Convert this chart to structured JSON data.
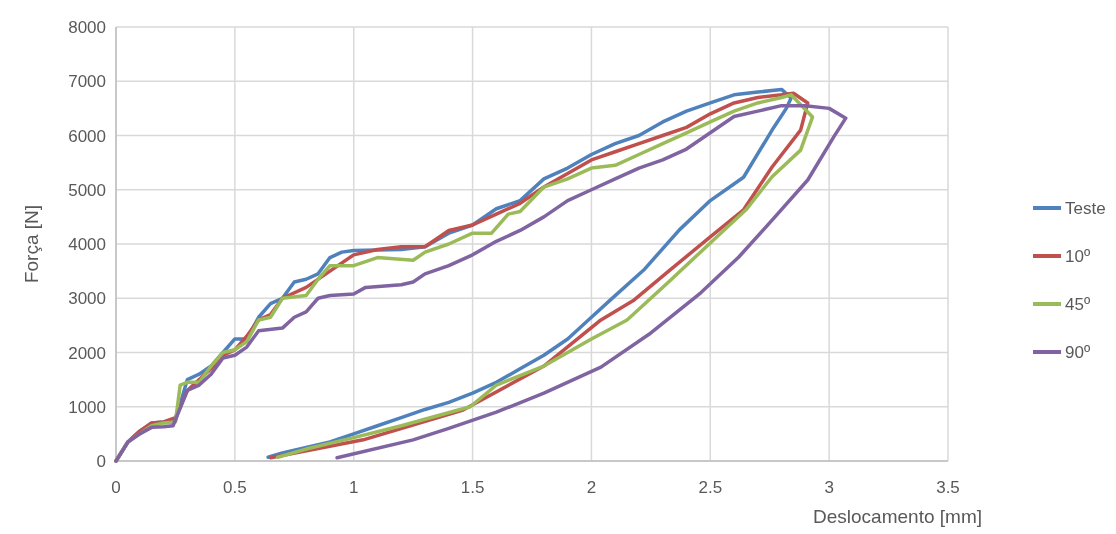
{
  "chart_data": {
    "type": "line",
    "xlabel": "Deslocamento [mm]",
    "ylabel": "Força [N]",
    "xlim": [
      0,
      3.5
    ],
    "ylim": [
      0,
      8000
    ],
    "xticks": [
      0,
      0.5,
      1,
      1.5,
      2,
      2.5,
      3,
      3.5
    ],
    "yticks": [
      0,
      1000,
      2000,
      3000,
      4000,
      5000,
      6000,
      7000,
      8000
    ],
    "grid": true,
    "legend": "right",
    "marker": "none",
    "line_style": "solid",
    "series": [
      {
        "name": "Teste",
        "color": "#4f81bd",
        "x": [
          0,
          0.05,
          0.1,
          0.15,
          0.2,
          0.25,
          0.3,
          0.35,
          0.4,
          0.45,
          0.5,
          0.55,
          0.6,
          0.65,
          0.7,
          0.75,
          0.8,
          0.85,
          0.9,
          0.95,
          1,
          1.2,
          1.3,
          1.4,
          1.5,
          1.6,
          1.7,
          1.8,
          1.9,
          2,
          2.1,
          2.2,
          2.3,
          2.4,
          2.5,
          2.6,
          2.7,
          2.8,
          2.84,
          2.82,
          2.76,
          2.64,
          2.5,
          2.37,
          2.22,
          2.08,
          2,
          1.9,
          1.8,
          1.7,
          1.6,
          1.5,
          1.4,
          1.3,
          1.2,
          1.1,
          1,
          0.9,
          0.8,
          0.7,
          0.64
        ],
        "values": [
          0,
          350,
          550,
          700,
          720,
          750,
          1500,
          1600,
          1750,
          2000,
          2250,
          2250,
          2650,
          2900,
          3000,
          3300,
          3350,
          3450,
          3750,
          3850,
          3880,
          3900,
          3950,
          4200,
          4350,
          4650,
          4800,
          5200,
          5400,
          5650,
          5850,
          6000,
          6250,
          6450,
          6600,
          6750,
          6800,
          6850,
          6690,
          6500,
          6100,
          5230,
          4800,
          4260,
          3520,
          2970,
          2650,
          2250,
          1950,
          1700,
          1450,
          1250,
          1080,
          950,
          800,
          650,
          500,
          350,
          250,
          150,
          70
        ]
      },
      {
        "name": "10º",
        "color": "#c0504d",
        "x": [
          0,
          0.05,
          0.1,
          0.15,
          0.2,
          0.25,
          0.3,
          0.35,
          0.4,
          0.45,
          0.5,
          0.55,
          0.6,
          0.65,
          0.7,
          0.8,
          0.9,
          1,
          1.1,
          1.2,
          1.3,
          1.4,
          1.5,
          1.6,
          1.7,
          1.8,
          1.9,
          2,
          2.1,
          2.2,
          2.3,
          2.4,
          2.5,
          2.6,
          2.7,
          2.8,
          2.85,
          2.91,
          2.88,
          2.76,
          2.64,
          2.5,
          2.33,
          2.18,
          2.04,
          1.8,
          1.46,
          1.04,
          0.65
        ],
        "values": [
          0,
          350,
          550,
          700,
          720,
          800,
          1300,
          1500,
          1700,
          1950,
          2050,
          2300,
          2600,
          2700,
          3000,
          3200,
          3500,
          3800,
          3900,
          3950,
          3950,
          4250,
          4350,
          4550,
          4750,
          5050,
          5300,
          5550,
          5700,
          5850,
          6000,
          6150,
          6400,
          6600,
          6700,
          6750,
          6780,
          6600,
          6100,
          5420,
          4630,
          4130,
          3520,
          2970,
          2600,
          1750,
          940,
          390,
          60
        ]
      },
      {
        "name": "45º",
        "color": "#9bbb59",
        "x": [
          0,
          0.05,
          0.1,
          0.15,
          0.2,
          0.25,
          0.27,
          0.3,
          0.35,
          0.4,
          0.45,
          0.5,
          0.55,
          0.6,
          0.65,
          0.7,
          0.8,
          0.85,
          0.9,
          1,
          1.1,
          1.25,
          1.3,
          1.4,
          1.5,
          1.58,
          1.65,
          1.7,
          1.8,
          1.9,
          2,
          2.1,
          2.2,
          2.3,
          2.4,
          2.5,
          2.6,
          2.7,
          2.8,
          2.84,
          2.93,
          2.88,
          2.76,
          2.65,
          2.5,
          2.32,
          2.15,
          2,
          1.8,
          1.6,
          1.49,
          1.2,
          1,
          0.8,
          0.68
        ],
        "values": [
          0,
          350,
          500,
          650,
          700,
          720,
          1400,
          1450,
          1450,
          1750,
          2000,
          2050,
          2200,
          2600,
          2650,
          3000,
          3050,
          3350,
          3600,
          3600,
          3750,
          3700,
          3850,
          4000,
          4200,
          4200,
          4550,
          4600,
          5050,
          5200,
          5400,
          5450,
          5650,
          5850,
          6050,
          6250,
          6450,
          6600,
          6700,
          6750,
          6340,
          5730,
          5240,
          4630,
          4020,
          3280,
          2600,
          2250,
          1750,
          1400,
          1000,
          650,
          430,
          220,
          70
        ]
      },
      {
        "name": "90º",
        "color": "#8064a2",
        "x": [
          0,
          0.05,
          0.1,
          0.15,
          0.2,
          0.24,
          0.3,
          0.35,
          0.4,
          0.45,
          0.5,
          0.55,
          0.6,
          0.7,
          0.75,
          0.8,
          0.85,
          0.9,
          1,
          1.05,
          1.2,
          1.25,
          1.3,
          1.4,
          1.5,
          1.6,
          1.7,
          1.8,
          1.9,
          2,
          2.1,
          2.2,
          2.3,
          2.4,
          2.5,
          2.6,
          2.7,
          2.8,
          2.9,
          3,
          3.07,
          3.02,
          2.91,
          2.76,
          2.62,
          2.46,
          2.25,
          2.04,
          1.8,
          1.6,
          1.4,
          1.25,
          0.93
        ],
        "values": [
          0,
          350,
          500,
          620,
          630,
          650,
          1300,
          1400,
          1600,
          1900,
          1950,
          2100,
          2400,
          2450,
          2650,
          2750,
          3000,
          3050,
          3080,
          3200,
          3250,
          3300,
          3450,
          3600,
          3800,
          4050,
          4250,
          4500,
          4800,
          5000,
          5200,
          5400,
          5550,
          5750,
          6050,
          6350,
          6450,
          6550,
          6550,
          6500,
          6320,
          5980,
          5180,
          4440,
          3760,
          3100,
          2360,
          1730,
          1250,
          900,
          600,
          390,
          60
        ]
      }
    ]
  }
}
